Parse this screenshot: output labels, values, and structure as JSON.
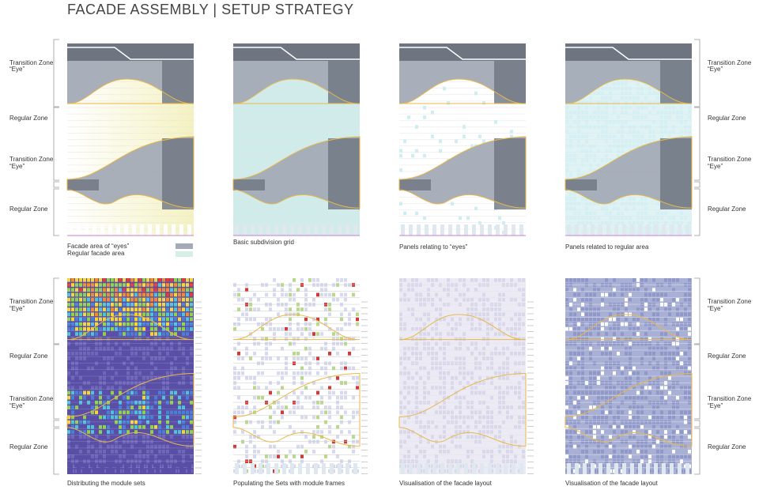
{
  "header": {
    "title": "FACADE ASSEMBLY | SETUP STRATEGY"
  },
  "zones": [
    {
      "label": "Transition Zone",
      "sub": "“Eye”"
    },
    {
      "label": "Regular Zone"
    },
    {
      "label": "Transition Zone",
      "sub": "“Eye”"
    },
    {
      "label": "Regular Zone"
    }
  ],
  "panels": [
    {
      "caption": "Facade area of “eyes”",
      "caption2": "Regular facade area"
    },
    {
      "caption": "Basic subdivision grid"
    },
    {
      "caption": "Panels relating to “eyes”"
    },
    {
      "caption": "Panels related to regular area"
    },
    {
      "caption": "Distributing the module sets"
    },
    {
      "caption": "Populating the Sets with module frames"
    },
    {
      "caption": "Visualisation of the facade layout"
    },
    {
      "caption": "Visualisation of the facade layout"
    }
  ]
}
